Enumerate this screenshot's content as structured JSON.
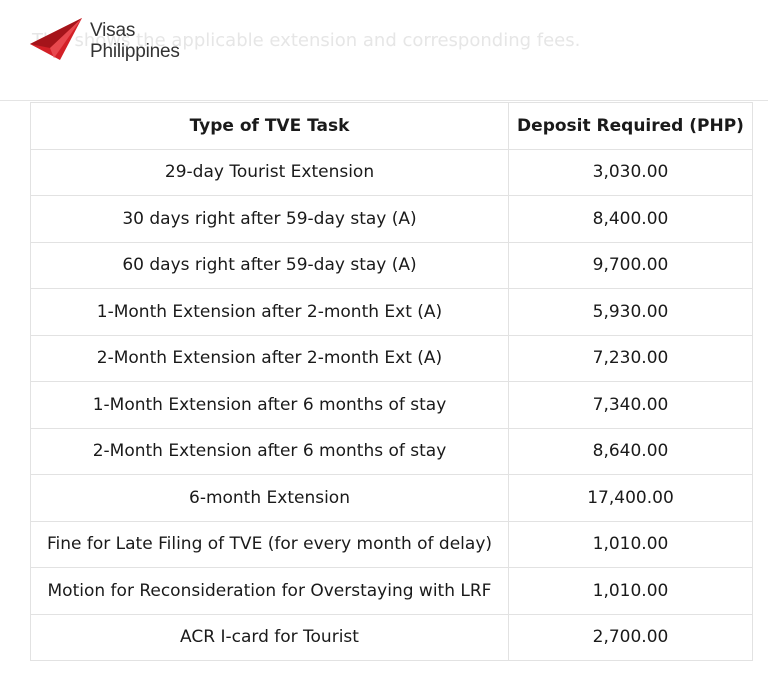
{
  "header": {
    "background_caption": "This shows the applicable extension and corresponding fees.",
    "logo": {
      "icon": "paper-plane-icon",
      "line1": "Visas",
      "line2": "Philippines",
      "brand_color": "#d32027"
    }
  },
  "table": {
    "columns": [
      "Type of TVE Task",
      "Deposit Required (PHP)"
    ],
    "rows": [
      [
        "29-day Tourist Extension",
        "3,030.00"
      ],
      [
        "30 days right after 59-day stay (A)",
        "8,400.00"
      ],
      [
        "60 days right after 59-day stay (A)",
        "9,700.00"
      ],
      [
        "1-Month Extension after 2-month Ext (A)",
        "5,930.00"
      ],
      [
        "2-Month Extension after 2-month Ext (A)",
        "7,230.00"
      ],
      [
        "1-Month Extension after 6 months of stay",
        "7,340.00"
      ],
      [
        "2-Month Extension after 6 months of stay",
        "8,640.00"
      ],
      [
        "6-month Extension",
        "17,400.00"
      ],
      [
        "Fine for Late Filing of TVE (for every month of delay)",
        "1,010.00"
      ],
      [
        "Motion for Reconsideration for Overstaying with LRF",
        "1,010.00"
      ],
      [
        "ACR I-card for Tourist",
        "2,700.00"
      ]
    ]
  }
}
